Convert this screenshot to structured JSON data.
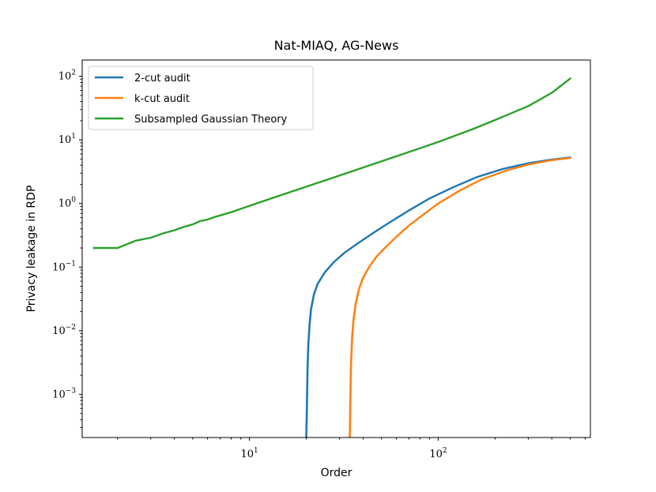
{
  "chart_data": {
    "type": "line",
    "title": "Nat-MIAQ, AG-News",
    "xlabel": "Order",
    "ylabel": "Privacy leakage in RDP",
    "xscale": "log",
    "yscale": "log",
    "xlim": [
      1.3,
      640
    ],
    "ylim": [
      0.00021,
      180
    ],
    "x_major_ticks": [
      {
        "value": 10,
        "base": "10",
        "exp": "1"
      },
      {
        "value": 100,
        "base": "10",
        "exp": "2"
      }
    ],
    "y_major_ticks": [
      {
        "value": 0.001,
        "base": "10",
        "exp": "−3"
      },
      {
        "value": 0.01,
        "base": "10",
        "exp": "−2"
      },
      {
        "value": 0.1,
        "base": "10",
        "exp": "−1"
      },
      {
        "value": 1,
        "base": "10",
        "exp": "0"
      },
      {
        "value": 10,
        "base": "10",
        "exp": "1"
      },
      {
        "value": 100,
        "base": "10",
        "exp": "2"
      }
    ],
    "grid": false,
    "legend_position": "top-left",
    "series": [
      {
        "name": "2-cut audit",
        "color": "#1f77b4",
        "band": true,
        "points": [
          [
            20.0,
            0.00021
          ],
          [
            20.15,
            0.0006
          ],
          [
            20.3,
            0.0025
          ],
          [
            20.5,
            0.006
          ],
          [
            20.8,
            0.012
          ],
          [
            21.2,
            0.022
          ],
          [
            22,
            0.038
          ],
          [
            23,
            0.055
          ],
          [
            25,
            0.082
          ],
          [
            28,
            0.12
          ],
          [
            32,
            0.17
          ],
          [
            37,
            0.23
          ],
          [
            45,
            0.34
          ],
          [
            55,
            0.5
          ],
          [
            70,
            0.78
          ],
          [
            90,
            1.2
          ],
          [
            120,
            1.8
          ],
          [
            160,
            2.6
          ],
          [
            220,
            3.5
          ],
          [
            300,
            4.3
          ],
          [
            400,
            4.9
          ],
          [
            500,
            5.3
          ]
        ]
      },
      {
        "name": "k-cut audit",
        "color": "#ff7f0e",
        "band": true,
        "points": [
          [
            34.0,
            0.00021
          ],
          [
            34.2,
            0.0007
          ],
          [
            34.5,
            0.003
          ],
          [
            35,
            0.008
          ],
          [
            35.6,
            0.015
          ],
          [
            36.5,
            0.026
          ],
          [
            38,
            0.045
          ],
          [
            40,
            0.068
          ],
          [
            43,
            0.1
          ],
          [
            47,
            0.145
          ],
          [
            53,
            0.21
          ],
          [
            60,
            0.3
          ],
          [
            70,
            0.45
          ],
          [
            85,
            0.7
          ],
          [
            100,
            1.0
          ],
          [
            130,
            1.6
          ],
          [
            170,
            2.4
          ],
          [
            230,
            3.3
          ],
          [
            300,
            4.1
          ],
          [
            400,
            4.8
          ],
          [
            500,
            5.2
          ]
        ]
      },
      {
        "name": "Subsampled Gaussian Theory",
        "color": "#2ca02c",
        "band": false,
        "points": [
          [
            1.5,
            0.2
          ],
          [
            2,
            0.2
          ],
          [
            2.5,
            0.26
          ],
          [
            3,
            0.29
          ],
          [
            3.5,
            0.34
          ],
          [
            4,
            0.38
          ],
          [
            4.5,
            0.43
          ],
          [
            5,
            0.47
          ],
          [
            5.5,
            0.53
          ],
          [
            6,
            0.56
          ],
          [
            6.5,
            0.61
          ],
          [
            7,
            0.65
          ],
          [
            8,
            0.73
          ],
          [
            10,
            0.92
          ],
          [
            15,
            1.38
          ],
          [
            20,
            1.84
          ],
          [
            30,
            2.76
          ],
          [
            50,
            4.6
          ],
          [
            80,
            7.4
          ],
          [
            100,
            9.3
          ],
          [
            150,
            14.5
          ],
          [
            200,
            20.5
          ],
          [
            300,
            34
          ],
          [
            400,
            55
          ],
          [
            500,
            92
          ]
        ]
      }
    ]
  }
}
